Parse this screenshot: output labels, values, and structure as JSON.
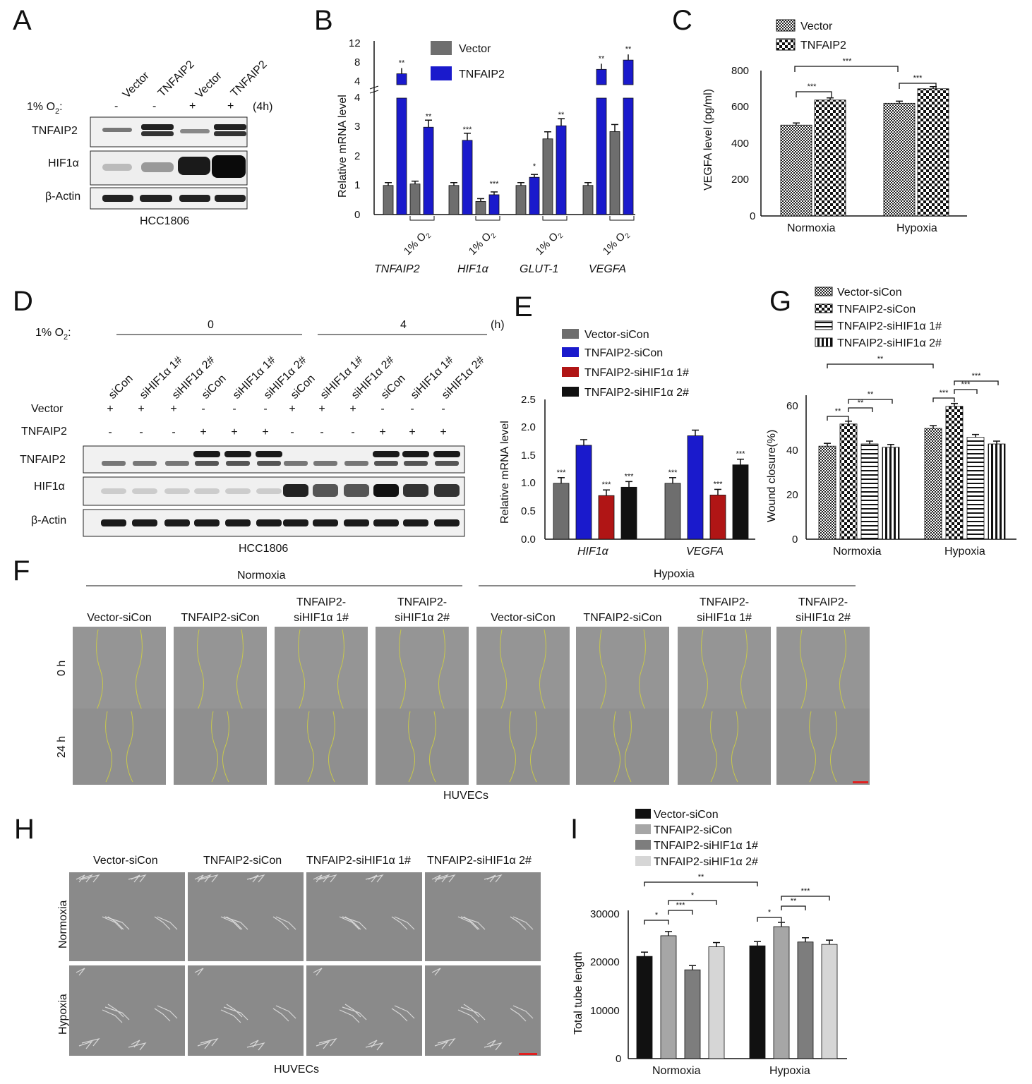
{
  "panels": {
    "A": "A",
    "B": "B",
    "C": "C",
    "D": "D",
    "E": "E",
    "F": "F",
    "G": "G",
    "H": "H",
    "I": "I"
  },
  "colors": {
    "gray": "#6e6e6e",
    "blue": "#1a1acc",
    "red": "#b01515",
    "black": "#111111",
    "lightgray": "#d6d6d6",
    "midgray": "#8a8a8a",
    "lightmid": "#a6a6a6"
  },
  "blotA": {
    "lanes": [
      "Vector",
      "TNFAIP2",
      "Vector",
      "TNFAIP2"
    ],
    "o2_label": "1% O",
    "o2_sub": "2",
    "o2_colon": ":",
    "o2_values": [
      "-",
      "-",
      "+",
      "+"
    ],
    "time": "(4h)",
    "rows": [
      "TNFAIP2",
      "HIF1α",
      "β-Actin"
    ],
    "cell": "HCC1806"
  },
  "blotD": {
    "o2_label": "1% O",
    "o2_sub": "2",
    "o2_colon": ":",
    "t0": "0",
    "t4": "4",
    "h": "(h)",
    "lanes": [
      "siCon",
      "siHIF1α 1#",
      "siHIF1α 2#",
      "siCon",
      "siHIF1α 1#",
      "siHIF1α 2#",
      "siCon",
      "siHIF1α 1#",
      "siHIF1α 2#",
      "siCon",
      "siHIF1α 1#",
      "siHIF1α 2#"
    ],
    "vector_label": "Vector",
    "tnfaip2_label": "TNFAIP2",
    "vector_signs": [
      "+",
      "+",
      "+",
      "-",
      "-",
      "-",
      "+",
      "+",
      "+",
      "-",
      "-",
      "-"
    ],
    "tnfaip2_signs": [
      "-",
      "-",
      "-",
      "+",
      "+",
      "+",
      "-",
      "-",
      "-",
      "+",
      "+",
      "+"
    ],
    "rows": [
      "TNFAIP2",
      "HIF1α",
      "β-Actin"
    ],
    "cell": "HCC1806"
  },
  "panelF": {
    "normoxia": "Normoxia",
    "hypoxia": "Hypoxia",
    "columns": [
      "Vector-siCon",
      "TNFAIP2-siCon",
      "TNFAIP2-\nsiHIF1α 1#",
      "TNFAIP2-\nsiHIF1α 2#",
      "Vector-siCon",
      "TNFAIP2-siCon",
      "TNFAIP2-\nsiHIF1α 1#",
      "TNFAIP2-\nsiHIF1α 2#"
    ],
    "rows": [
      "0 h",
      "24 h"
    ],
    "cell": "HUVECs"
  },
  "panelH": {
    "columns": [
      "Vector-siCon",
      "TNFAIP2-siCon",
      "TNFAIP2-siHIF1α 1#",
      "TNFAIP2-siHIF1α 2#"
    ],
    "rows": [
      "Normoxia",
      "Hypoxia"
    ],
    "cell": "HUVECs"
  },
  "chart_data": [
    {
      "id": "B",
      "type": "bar",
      "ylabel": "Relative mRNA level",
      "y_lower_ticks": [
        "0",
        "1",
        "2",
        "3",
        "4"
      ],
      "y_upper_ticks": [
        "4",
        "8",
        "12"
      ],
      "ylim_lower": [
        0,
        4
      ],
      "ylim_upper": [
        4,
        12
      ],
      "legend": [
        "Vector",
        "TNFAIP2"
      ],
      "genes": [
        "TNFAIP2",
        "HIF1α",
        "GLUT-1",
        "VEGFA"
      ],
      "o2_label": "1% O",
      "o2_sub": "2",
      "values": [
        {
          "vector": 1.0,
          "tnfaip2": 6.0,
          "vector_hyp": 1.05,
          "tnfaip2_hyp": 3.0
        },
        {
          "vector": 1.0,
          "tnfaip2": 2.55,
          "vector_hyp": 0.45,
          "tnfaip2_hyp": 0.68
        },
        {
          "vector": 1.0,
          "tnfaip2": 1.28,
          "vector_hyp": 2.6,
          "tnfaip2_hyp": 3.05
        },
        {
          "vector": 1.0,
          "tnfaip2": 6.8,
          "vector_hyp": 2.85,
          "tnfaip2_hyp": 8.5
        }
      ],
      "stars": [
        [
          "**",
          "**"
        ],
        [
          "***",
          "***"
        ],
        [
          "*",
          "**"
        ],
        [
          "**",
          "**"
        ]
      ]
    },
    {
      "id": "C",
      "type": "bar",
      "ylabel": "VEGFA level (pg/ml)",
      "categories": [
        "Normoxia",
        "Hypoxia"
      ],
      "legend": [
        "Vector",
        "TNFAIP2"
      ],
      "series": [
        {
          "name": "Vector",
          "values": [
            500,
            620
          ]
        },
        {
          "name": "TNFAIP2",
          "values": [
            638,
            700
          ]
        }
      ],
      "ylim": [
        0,
        800
      ],
      "yticks": [
        "0",
        "200",
        "400",
        "600",
        "800"
      ],
      "stars": [
        "***",
        "***",
        "***"
      ]
    },
    {
      "id": "E",
      "type": "bar",
      "ylabel": "Relative mRNA level",
      "categories": [
        "HIF1α",
        "VEGFA"
      ],
      "legend": [
        "Vector-siCon",
        "TNFAIP2-siCon",
        "TNFAIP2-siHIF1α 1#",
        "TNFAIP2-siHIF1α 2#"
      ],
      "series": [
        {
          "name": "Vector-siCon",
          "values": [
            1.0,
            1.0
          ]
        },
        {
          "name": "TNFAIP2-siCon",
          "values": [
            1.68,
            1.85
          ]
        },
        {
          "name": "TNFAIP2-siHIF1α 1#",
          "values": [
            0.78,
            0.79
          ]
        },
        {
          "name": "TNFAIP2-siHIF1α 2#",
          "values": [
            0.93,
            1.33
          ]
        }
      ],
      "ylim": [
        0,
        2.5
      ],
      "yticks": [
        "0.0",
        "0.5",
        "1.0",
        "1.5",
        "2.0",
        "2.5"
      ],
      "stars": "***"
    },
    {
      "id": "G",
      "type": "bar",
      "ylabel": "Wound closure(%)",
      "categories": [
        "Normoxia",
        "Hypoxia"
      ],
      "legend": [
        "Vector-siCon",
        "TNFAIP2-siCon",
        "TNFAIP2-siHIF1α 1#",
        "TNFAIP2-siHIF1α 2#"
      ],
      "series": [
        {
          "name": "Vector-siCon",
          "values": [
            42,
            50
          ]
        },
        {
          "name": "TNFAIP2-siCon",
          "values": [
            52,
            60
          ]
        },
        {
          "name": "TNFAIP2-siHIF1α 1#",
          "values": [
            43,
            46
          ]
        },
        {
          "name": "TNFAIP2-siHIF1α 2#",
          "values": [
            41.5,
            43
          ]
        }
      ],
      "ylim": [
        0,
        65
      ],
      "yticks": [
        "0",
        "20",
        "40",
        "60"
      ],
      "stars": {
        "top": "**",
        "n": [
          "**",
          "**",
          "**"
        ],
        "h": [
          "***",
          "***",
          "***"
        ]
      }
    },
    {
      "id": "I",
      "type": "bar",
      "ylabel": "Total tube length",
      "categories": [
        "Normoxia",
        "Hypoxia"
      ],
      "legend": [
        "Vector-siCon",
        "TNFAIP2-siCon",
        "TNFAIP2-siHIF1α 1#",
        "TNFAIP2-siHIF1α 2#"
      ],
      "series": [
        {
          "name": "Vector-siCon",
          "values": [
            21300,
            23500
          ]
        },
        {
          "name": "TNFAIP2-siCon",
          "values": [
            25600,
            27500
          ]
        },
        {
          "name": "TNFAIP2-siHIF1α 1#",
          "values": [
            18500,
            24300
          ]
        },
        {
          "name": "TNFAIP2-siHIF1α 2#",
          "values": [
            23300,
            23800
          ]
        }
      ],
      "ylim": [
        0,
        30000
      ],
      "yticks": [
        "0",
        "10000",
        "20000",
        "30000"
      ],
      "stars": {
        "top": "**",
        "n": [
          "*",
          "***",
          "*"
        ],
        "h": [
          "*",
          "**",
          "***"
        ]
      }
    }
  ]
}
